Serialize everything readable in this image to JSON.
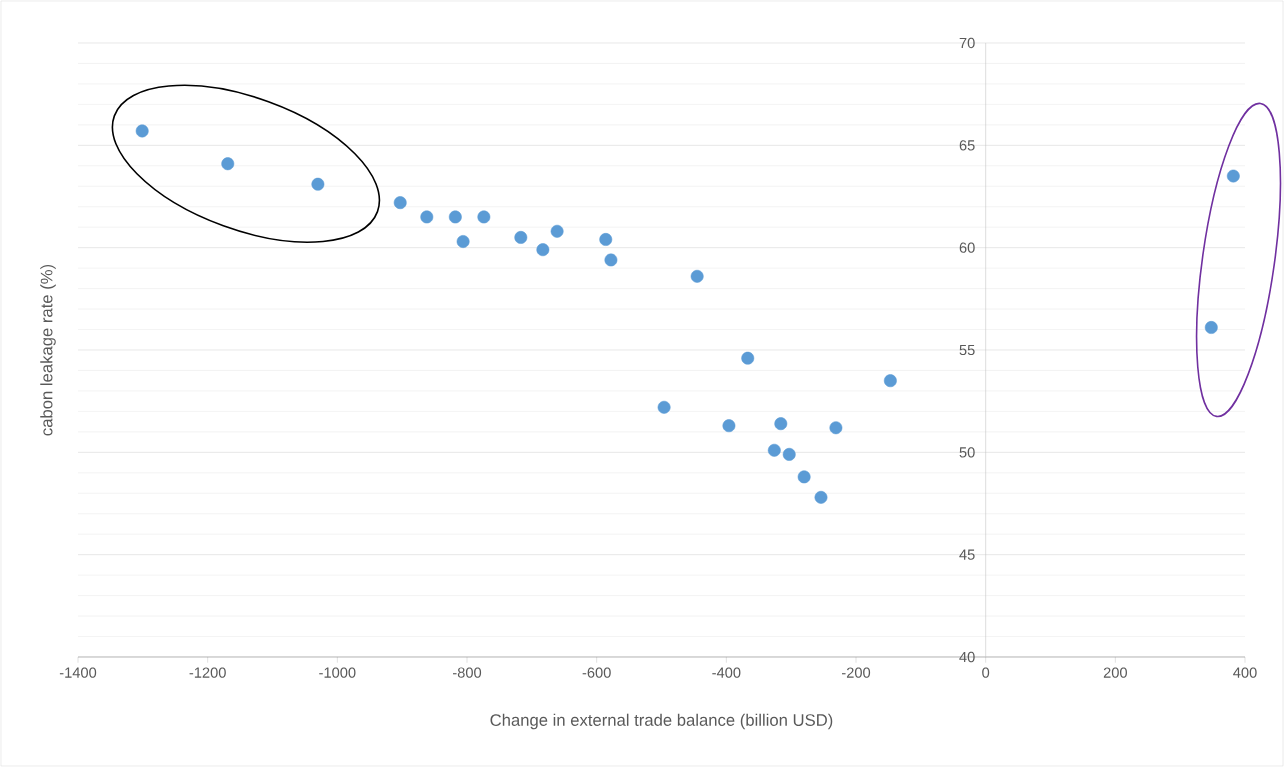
{
  "chart_data": {
    "type": "scatter",
    "xlabel": "Change in external trade balance (billion USD)",
    "ylabel": "cabon leakage rate (%)",
    "xlim": [
      -1400,
      400
    ],
    "xticks": [
      -1400,
      -1200,
      -1000,
      -800,
      -600,
      -400,
      -200,
      0,
      200,
      400
    ],
    "ylim": [
      40,
      70
    ],
    "yticks": [
      40,
      45,
      50,
      55,
      60,
      65,
      70
    ],
    "grid": "y",
    "marker": "circle",
    "series": [
      {
        "color": "#5b9bd5",
        "x": [
          -1301,
          -1169,
          -1030,
          -903,
          -862,
          -818,
          -806,
          -774,
          -717,
          -683,
          -661,
          -586,
          -578,
          -445,
          -367,
          -496,
          -396,
          -326,
          -316,
          -303,
          -280,
          -254,
          -231,
          -147,
          382,
          348
        ],
        "values": [
          65.7,
          64.1,
          63.1,
          62.2,
          61.5,
          61.5,
          60.3,
          61.5,
          60.5,
          59.9,
          60.8,
          60.4,
          59.4,
          58.6,
          54.6,
          52.2,
          51.3,
          50.1,
          51.4,
          49.9,
          48.8,
          47.8,
          51.2,
          53.5,
          63.5,
          56.1
        ]
      }
    ]
  }
}
